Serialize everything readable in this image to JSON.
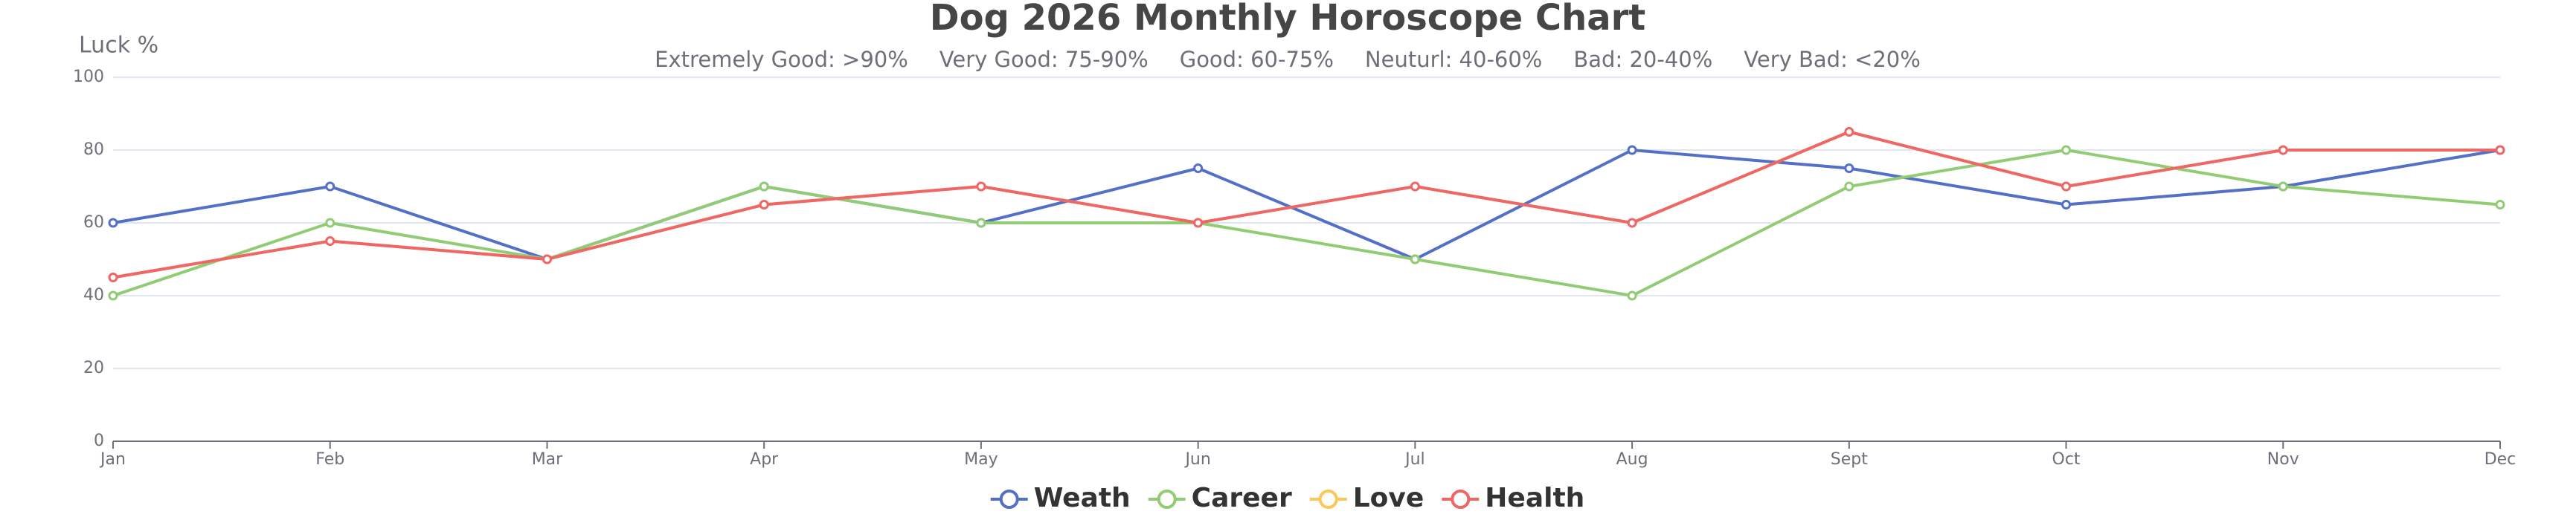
{
  "chart_data": {
    "type": "line",
    "title": "Dog 2026 Monthly Horoscope Chart",
    "subtitle": [
      "Extremely Good: >90%",
      "Very Good: 75-90%",
      "Good: 60-75%",
      "Neuturl: 40-60%",
      "Bad: 20-40%",
      "Very Bad: <20%"
    ],
    "y_axis_label": "Luck %",
    "categories": [
      "Jan",
      "Feb",
      "Mar",
      "Apr",
      "May",
      "Jun",
      "Jul",
      "Aug",
      "Sept",
      "Oct",
      "Nov",
      "Dec"
    ],
    "series": [
      {
        "name": "Weath",
        "color": "#5470c6",
        "values": [
          60,
          70,
          50,
          70,
          60,
          75,
          50,
          80,
          75,
          65,
          70,
          80
        ]
      },
      {
        "name": "Career",
        "color": "#91cc75",
        "values": [
          40,
          60,
          50,
          70,
          60,
          60,
          50,
          40,
          70,
          80,
          70,
          65
        ]
      },
      {
        "name": "Love",
        "color": "#fac858",
        "values": [
          45,
          55,
          50,
          65,
          70,
          60,
          70,
          60,
          85,
          70,
          80,
          80
        ]
      },
      {
        "name": "Health",
        "color": "#ee6666",
        "values": [
          45,
          55,
          50,
          65,
          70,
          60,
          70,
          60,
          85,
          70,
          80,
          80
        ]
      }
    ],
    "ylim": [
      0,
      100
    ],
    "yticks": [
      0,
      20,
      40,
      60,
      80,
      100
    ],
    "grid": true,
    "legend": "bottom"
  }
}
